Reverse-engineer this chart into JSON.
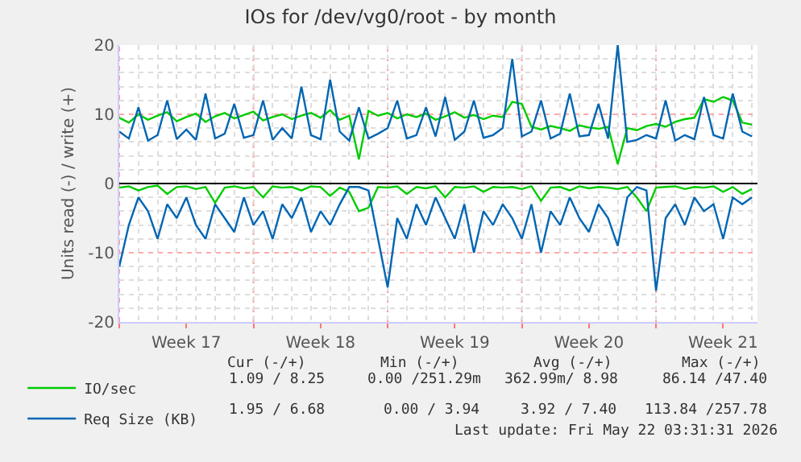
{
  "chart_data": {
    "type": "line",
    "title": "IOs for /dev/vg0/root - by month",
    "ylabel": "Units read (-) / write (+)",
    "x": [
      "2026-04-20T00:00",
      "2026-04-20T12:00",
      "2026-04-21T00:00",
      "2026-04-21T12:00",
      "2026-04-22T00:00",
      "2026-04-22T12:00",
      "2026-04-23T00:00",
      "2026-04-23T12:00",
      "2026-04-24T00:00",
      "2026-04-24T12:00",
      "2026-04-25T00:00",
      "2026-04-25T12:00",
      "2026-04-26T00:00",
      "2026-04-26T12:00",
      "2026-04-27T00:00",
      "2026-04-27T12:00",
      "2026-04-28T00:00",
      "2026-04-28T12:00",
      "2026-04-29T00:00",
      "2026-04-29T12:00",
      "2026-04-30T00:00",
      "2026-04-30T12:00",
      "2026-05-01T00:00",
      "2026-05-01T12:00",
      "2026-05-02T00:00",
      "2026-05-02T12:00",
      "2026-05-03T00:00",
      "2026-05-03T12:00",
      "2026-05-04T00:00",
      "2026-05-04T12:00",
      "2026-05-05T00:00",
      "2026-05-05T12:00",
      "2026-05-06T00:00",
      "2026-05-06T12:00",
      "2026-05-07T00:00",
      "2026-05-07T12:00",
      "2026-05-08T00:00",
      "2026-05-08T12:00",
      "2026-05-09T00:00",
      "2026-05-09T12:00",
      "2026-05-10T00:00",
      "2026-05-10T12:00",
      "2026-05-11T00:00",
      "2026-05-11T12:00",
      "2026-05-12T00:00",
      "2026-05-12T12:00",
      "2026-05-13T00:00",
      "2026-05-13T12:00",
      "2026-05-14T00:00",
      "2026-05-14T12:00",
      "2026-05-15T00:00",
      "2026-05-15T12:00",
      "2026-05-16T00:00",
      "2026-05-16T12:00",
      "2026-05-17T00:00",
      "2026-05-17T12:00",
      "2026-05-18T00:00",
      "2026-05-18T12:00",
      "2026-05-19T00:00",
      "2026-05-19T12:00",
      "2026-05-20T00:00",
      "2026-05-20T12:00",
      "2026-05-21T00:00",
      "2026-05-21T12:00",
      "2026-05-22T00:00",
      "2026-05-22T12:00",
      "2026-05-23T00:00"
    ],
    "series": [
      {
        "name": "IO/sec",
        "color": "#00cc00",
        "values": [
          9.5,
          8.8,
          10,
          9.2,
          9.8,
          10.3,
          9,
          9.6,
          10.1,
          8.9,
          9.7,
          10.2,
          9.4,
          9.9,
          10.4,
          9.1,
          9.6,
          10,
          9.3,
          9.8,
          10.2,
          9.5,
          10.6,
          9.2,
          9.8,
          3.5,
          10.5,
          9.8,
          10.2,
          9.4,
          10,
          9.6,
          10.1,
          9.2,
          9.7,
          10.3,
          9.5,
          9.9,
          9.3,
          9.8,
          9.6,
          11.8,
          11.5,
          8.2,
          7.8,
          8.3,
          8,
          7.6,
          8.4,
          8.1,
          7.9,
          8.2,
          2.8,
          8,
          7.7,
          8.3,
          8.6,
          8.2,
          8.9,
          9.3,
          9.5,
          12.2,
          11.8,
          12.5,
          12,
          8.8,
          8.5
        ]
      },
      {
        "color": "#00cc00",
        "values": [
          -0.6,
          -0.4,
          -1,
          -0.5,
          -0.3,
          -1.5,
          -0.5,
          -0.4,
          -0.8,
          -0.5,
          -2.8,
          -0.6,
          -0.4,
          -0.7,
          -0.5,
          -2,
          -0.4,
          -0.6,
          -0.5,
          -1,
          -0.4,
          -0.5,
          -1.8,
          -0.6,
          -1.2,
          -4,
          -3.5,
          -0.5,
          -0.6,
          -0.4,
          -1.5,
          -0.5,
          -0.7,
          -0.4,
          -2,
          -0.5,
          -0.6,
          -0.4,
          -1.2,
          -0.5,
          -0.6,
          -0.5,
          -0.8,
          -0.4,
          -2.5,
          -0.6,
          -0.5,
          -1,
          -0.4,
          -0.7,
          -0.5,
          -0.6,
          -0.8,
          -0.5,
          -2,
          -4,
          -0.6,
          -0.5,
          -0.4,
          -0.8,
          -0.5,
          -0.6,
          -0.4,
          -1.2,
          -0.5,
          -1.5,
          -0.8
        ]
      },
      {
        "name": "Req Size (KB)",
        "color": "#0066b3",
        "values": [
          7.5,
          6.5,
          11,
          6.2,
          7,
          12,
          6.4,
          7.8,
          6.3,
          13,
          6.5,
          7.2,
          11.5,
          6.6,
          7,
          12,
          6.3,
          8,
          6.5,
          14,
          7,
          6.4,
          15,
          7.5,
          6.2,
          11,
          6.5,
          7.2,
          8,
          12,
          6.5,
          7,
          11,
          6.8,
          12.5,
          6.3,
          7.5,
          12,
          6.6,
          7,
          8,
          18,
          6.8,
          7.5,
          12,
          6.5,
          7.2,
          13,
          6.8,
          7,
          11.5,
          6.5,
          20,
          6,
          6.3,
          7,
          6.5,
          12,
          6.2,
          7,
          6.4,
          12.5,
          7,
          6.5,
          13,
          7.5,
          6.8
        ]
      },
      {
        "color": "#0066b3",
        "values": [
          -12,
          -6,
          -2,
          -4,
          -8,
          -3,
          -5,
          -2,
          -6,
          -8,
          -3,
          -5,
          -7,
          -2,
          -6,
          -4,
          -8,
          -3,
          -5,
          -2,
          -7,
          -4,
          -6,
          -3,
          -0.5,
          -0.5,
          -1,
          -8,
          -15,
          -5,
          -8,
          -3,
          -6,
          -2,
          -5,
          -8,
          -3,
          -10,
          -4,
          -6,
          -3,
          -5,
          -8,
          -3,
          -10,
          -4,
          -6,
          -2,
          -5,
          -7,
          -3,
          -5,
          -9,
          -2,
          -0.5,
          -1,
          -15.5,
          -5,
          -3,
          -6,
          -2,
          -4,
          -3,
          -8,
          -2,
          -3,
          -2
        ]
      }
    ],
    "xlim": [
      "2026-04-20T00:00",
      "2026-05-23T07:00"
    ],
    "xticks": [
      {
        "value": "2026-04-20",
        "label": null
      },
      {
        "value": "2026-04-23T12:00",
        "label": "Week 17"
      },
      {
        "value": "2026-04-27",
        "label": null
      },
      {
        "value": "2026-04-30T12:00",
        "label": "Week 18"
      },
      {
        "value": "2026-05-04",
        "label": null
      },
      {
        "value": "2026-05-07T12:00",
        "label": "Week 19"
      },
      {
        "value": "2026-05-11",
        "label": null
      },
      {
        "value": "2026-05-14T12:00",
        "label": "Week 20"
      },
      {
        "value": "2026-05-18",
        "label": null
      },
      {
        "value": "2026-05-21T12:00",
        "label": "Week 21"
      }
    ],
    "ylim": [
      -20,
      20
    ],
    "yticks": [
      -20,
      -10,
      0,
      10,
      20
    ],
    "grid": true,
    "legend": "bottom left",
    "line_style": "solid",
    "marker": "none",
    "annotations": [
      "Cur (-/+)",
      "Min (-/+)",
      "Avg (-/+)",
      "Max (-/+)",
      "1.09 / 8.25",
      "0.00 /251.29m",
      "362.99m/ 8.98",
      "86.14 /47.40",
      "1.95 / 6.68",
      "0.00 / 3.94",
      "3.92 / 7.40",
      "113.84 /257.78",
      "Last update: Fri May 22 03:31:31 2026"
    ]
  }
}
